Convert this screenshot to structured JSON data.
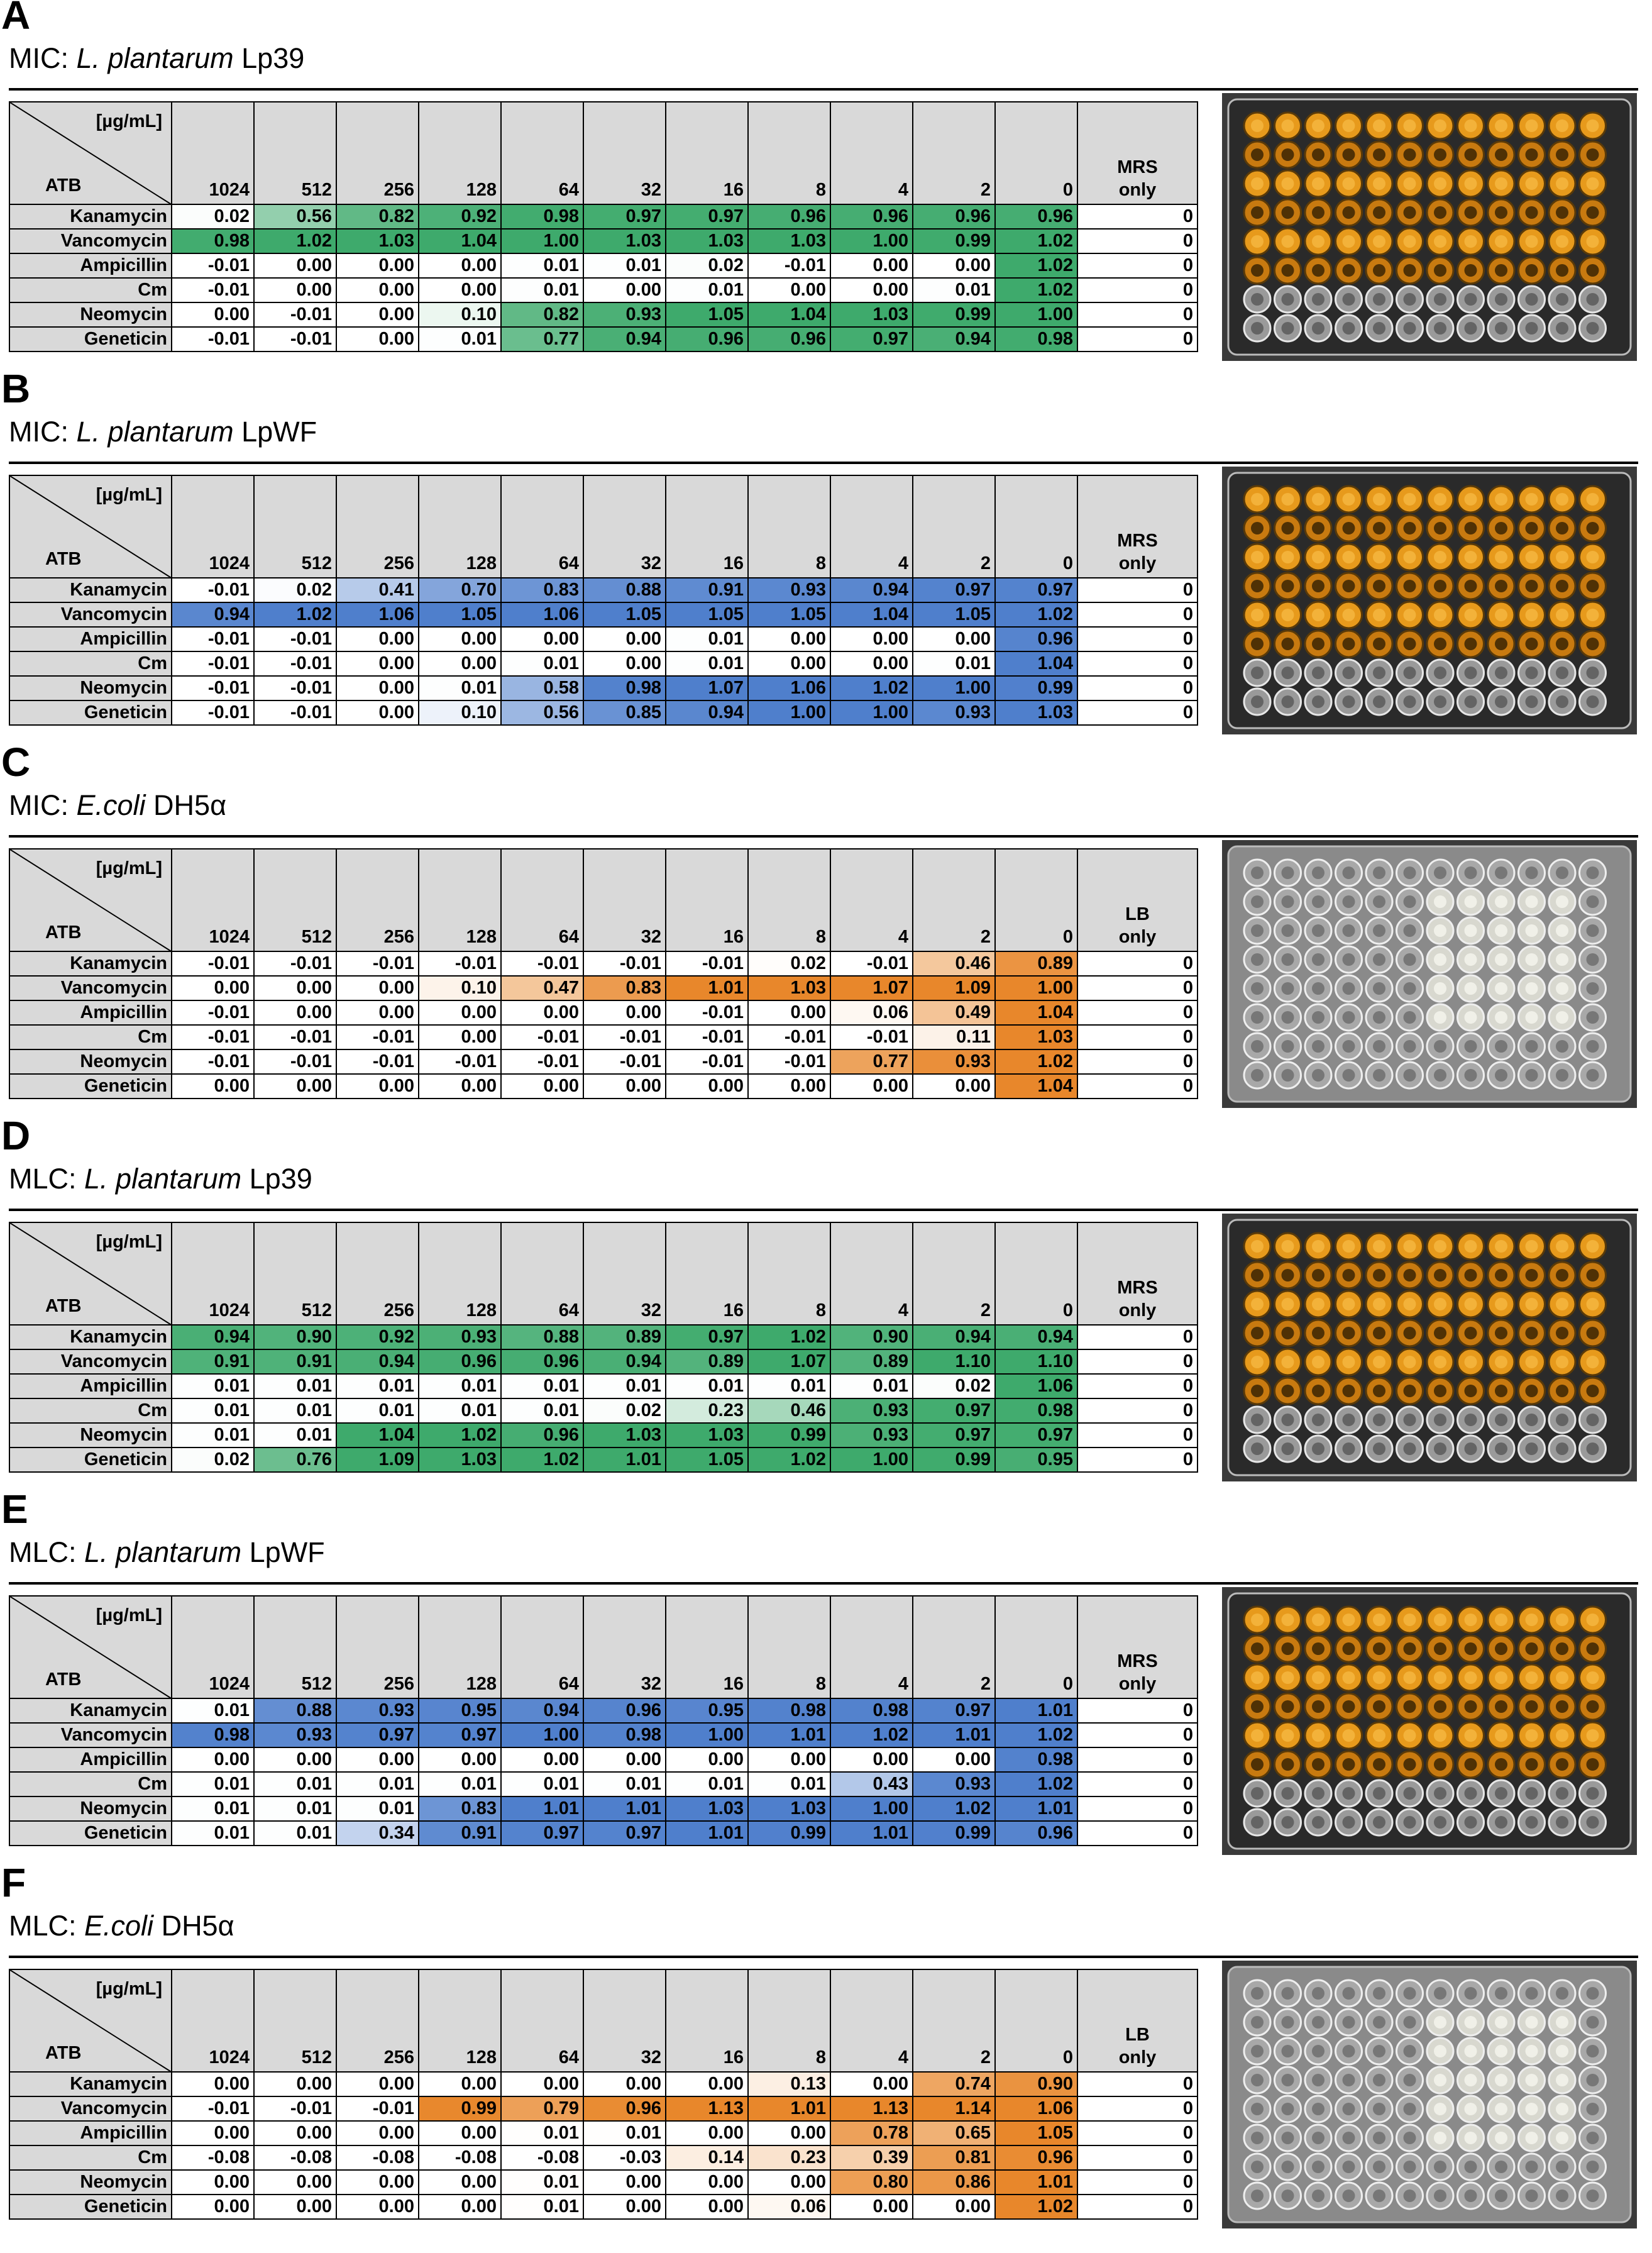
{
  "header": {
    "unit": "[µg/mL]",
    "atb": "ATB"
  },
  "concentrations": [
    "1024",
    "512",
    "256",
    "128",
    "64",
    "32",
    "16",
    "8",
    "4",
    "2",
    "0"
  ],
  "antibiotics": [
    "Kanamycin",
    "Vancomycin",
    "Ampicillin",
    "Cm",
    "Neomycin",
    "Geneticin"
  ],
  "colors": {
    "green": "#3eaa6c",
    "blue": "#4f7fcc",
    "orange": "#e8872b",
    "header_gray": "#d9d9d9"
  },
  "panels": [
    {
      "letter": "A",
      "assay": "MIC: ",
      "organism": "L. plantarum",
      "strain": " Lp39",
      "control_label_1": "MRS",
      "control_label_2": "only",
      "color": "green",
      "plate": "amber",
      "rows": [
        [
          "0.02",
          "0.56",
          "0.82",
          "0.92",
          "0.98",
          "0.97",
          "0.97",
          "0.96",
          "0.96",
          "0.96",
          "0.96",
          "0"
        ],
        [
          "0.98",
          "1.02",
          "1.03",
          "1.04",
          "1.00",
          "1.03",
          "1.03",
          "1.03",
          "1.00",
          "0.99",
          "1.02",
          "0"
        ],
        [
          "-0.01",
          "0.00",
          "0.00",
          "0.00",
          "0.01",
          "0.01",
          "0.02",
          "-0.01",
          "0.00",
          "0.00",
          "1.02",
          "0"
        ],
        [
          "-0.01",
          "0.00",
          "0.00",
          "0.00",
          "0.01",
          "0.00",
          "0.01",
          "0.00",
          "0.00",
          "0.01",
          "1.02",
          "0"
        ],
        [
          "0.00",
          "-0.01",
          "0.00",
          "0.10",
          "0.82",
          "0.93",
          "1.05",
          "1.04",
          "1.03",
          "0.99",
          "1.00",
          "0"
        ],
        [
          "-0.01",
          "-0.01",
          "0.00",
          "0.01",
          "0.77",
          "0.94",
          "0.96",
          "0.96",
          "0.97",
          "0.94",
          "0.98",
          "0"
        ]
      ]
    },
    {
      "letter": "B",
      "assay": "MIC: ",
      "organism": "L. plantarum",
      "strain": " LpWF",
      "control_label_1": "MRS",
      "control_label_2": "only",
      "color": "blue",
      "plate": "amber",
      "rows": [
        [
          "-0.01",
          "0.02",
          "0.41",
          "0.70",
          "0.83",
          "0.88",
          "0.91",
          "0.93",
          "0.94",
          "0.97",
          "0.97",
          "0"
        ],
        [
          "0.94",
          "1.02",
          "1.06",
          "1.05",
          "1.06",
          "1.05",
          "1.05",
          "1.05",
          "1.04",
          "1.05",
          "1.02",
          "0"
        ],
        [
          "-0.01",
          "-0.01",
          "0.00",
          "0.00",
          "0.00",
          "0.00",
          "0.01",
          "0.00",
          "0.00",
          "0.00",
          "0.96",
          "0"
        ],
        [
          "-0.01",
          "-0.01",
          "0.00",
          "0.00",
          "0.01",
          "0.00",
          "0.01",
          "0.00",
          "0.00",
          "0.01",
          "1.04",
          "0"
        ],
        [
          "-0.01",
          "-0.01",
          "0.00",
          "0.01",
          "0.58",
          "0.98",
          "1.07",
          "1.06",
          "1.02",
          "1.00",
          "0.99",
          "0"
        ],
        [
          "-0.01",
          "-0.01",
          "0.00",
          "0.10",
          "0.56",
          "0.85",
          "0.94",
          "1.00",
          "1.00",
          "0.93",
          "1.03",
          "0"
        ]
      ]
    },
    {
      "letter": "C",
      "assay": "MIC: ",
      "organism": "E.coli",
      "strain": " DH5α",
      "control_label_1": "LB",
      "control_label_2": "only",
      "color": "orange",
      "plate": "clear",
      "rows": [
        [
          "-0.01",
          "-0.01",
          "-0.01",
          "-0.01",
          "-0.01",
          "-0.01",
          "-0.01",
          "0.02",
          "-0.01",
          "0.46",
          "0.89",
          "0"
        ],
        [
          "0.00",
          "0.00",
          "0.00",
          "0.10",
          "0.47",
          "0.83",
          "1.01",
          "1.03",
          "1.07",
          "1.09",
          "1.00",
          "0"
        ],
        [
          "-0.01",
          "0.00",
          "0.00",
          "0.00",
          "0.00",
          "0.00",
          "-0.01",
          "0.00",
          "0.06",
          "0.49",
          "1.04",
          "0"
        ],
        [
          "-0.01",
          "-0.01",
          "-0.01",
          "0.00",
          "-0.01",
          "-0.01",
          "-0.01",
          "-0.01",
          "-0.01",
          "0.11",
          "1.03",
          "0"
        ],
        [
          "-0.01",
          "-0.01",
          "-0.01",
          "-0.01",
          "-0.01",
          "-0.01",
          "-0.01",
          "-0.01",
          "0.77",
          "0.93",
          "1.02",
          "0"
        ],
        [
          "0.00",
          "0.00",
          "0.00",
          "0.00",
          "0.00",
          "0.00",
          "0.00",
          "0.00",
          "0.00",
          "0.00",
          "1.04",
          "0"
        ]
      ]
    },
    {
      "letter": "D",
      "assay": "MLC: ",
      "organism": "L. plantarum",
      "strain": " Lp39",
      "control_label_1": "MRS",
      "control_label_2": "only",
      "color": "green",
      "plate": "amber",
      "rows": [
        [
          "0.94",
          "0.90",
          "0.92",
          "0.93",
          "0.88",
          "0.89",
          "0.97",
          "1.02",
          "0.90",
          "0.94",
          "0.94",
          "0"
        ],
        [
          "0.91",
          "0.91",
          "0.94",
          "0.96",
          "0.96",
          "0.94",
          "0.89",
          "1.07",
          "0.89",
          "1.10",
          "1.10",
          "0"
        ],
        [
          "0.01",
          "0.01",
          "0.01",
          "0.01",
          "0.01",
          "0.01",
          "0.01",
          "0.01",
          "0.01",
          "0.02",
          "1.06",
          "0"
        ],
        [
          "0.01",
          "0.01",
          "0.01",
          "0.01",
          "0.01",
          "0.02",
          "0.23",
          "0.46",
          "0.93",
          "0.97",
          "0.98",
          "0"
        ],
        [
          "0.01",
          "0.01",
          "1.04",
          "1.02",
          "0.96",
          "1.03",
          "1.03",
          "0.99",
          "0.93",
          "0.97",
          "0.97",
          "0"
        ],
        [
          "0.02",
          "0.76",
          "1.09",
          "1.03",
          "1.02",
          "1.01",
          "1.05",
          "1.02",
          "1.00",
          "0.99",
          "0.95",
          "0"
        ]
      ]
    },
    {
      "letter": "E",
      "assay": "MLC: ",
      "organism": "L. plantarum",
      "strain": " LpWF",
      "control_label_1": "MRS",
      "control_label_2": "only",
      "color": "blue",
      "plate": "amber",
      "rows": [
        [
          "0.01",
          "0.88",
          "0.93",
          "0.95",
          "0.94",
          "0.96",
          "0.95",
          "0.98",
          "0.98",
          "0.97",
          "1.01",
          "0"
        ],
        [
          "0.98",
          "0.93",
          "0.97",
          "0.97",
          "1.00",
          "0.98",
          "1.00",
          "1.01",
          "1.02",
          "1.01",
          "1.02",
          "0"
        ],
        [
          "0.00",
          "0.00",
          "0.00",
          "0.00",
          "0.00",
          "0.00",
          "0.00",
          "0.00",
          "0.00",
          "0.00",
          "0.98",
          "0"
        ],
        [
          "0.01",
          "0.01",
          "0.01",
          "0.01",
          "0.01",
          "0.01",
          "0.01",
          "0.01",
          "0.43",
          "0.93",
          "1.02",
          "0"
        ],
        [
          "0.01",
          "0.01",
          "0.01",
          "0.83",
          "1.01",
          "1.01",
          "1.03",
          "1.03",
          "1.00",
          "1.02",
          "1.01",
          "0"
        ],
        [
          "0.01",
          "0.01",
          "0.34",
          "0.91",
          "0.97",
          "0.97",
          "1.01",
          "0.99",
          "1.01",
          "0.99",
          "0.96",
          "0"
        ]
      ]
    },
    {
      "letter": "F",
      "assay": "MLC: ",
      "organism": "E.coli",
      "strain": " DH5α",
      "control_label_1": "LB",
      "control_label_2": "only",
      "color": "orange",
      "plate": "clear",
      "rows": [
        [
          "0.00",
          "0.00",
          "0.00",
          "0.00",
          "0.00",
          "0.00",
          "0.00",
          "0.13",
          "0.00",
          "0.74",
          "0.90",
          "0"
        ],
        [
          "-0.01",
          "-0.01",
          "-0.01",
          "0.99",
          "0.79",
          "0.96",
          "1.13",
          "1.01",
          "1.13",
          "1.14",
          "1.06",
          "0"
        ],
        [
          "0.00",
          "0.00",
          "0.00",
          "0.00",
          "0.01",
          "0.01",
          "0.00",
          "0.00",
          "0.78",
          "0.65",
          "1.05",
          "0"
        ],
        [
          "-0.08",
          "-0.08",
          "-0.08",
          "-0.08",
          "-0.08",
          "-0.03",
          "0.14",
          "0.23",
          "0.39",
          "0.81",
          "0.96",
          "0"
        ],
        [
          "0.00",
          "0.00",
          "0.00",
          "0.00",
          "0.01",
          "0.00",
          "0.00",
          "0.00",
          "0.80",
          "0.86",
          "1.01",
          "0"
        ],
        [
          "0.00",
          "0.00",
          "0.00",
          "0.00",
          "0.01",
          "0.00",
          "0.00",
          "0.06",
          "0.00",
          "0.00",
          "1.02",
          "0"
        ]
      ]
    }
  ]
}
